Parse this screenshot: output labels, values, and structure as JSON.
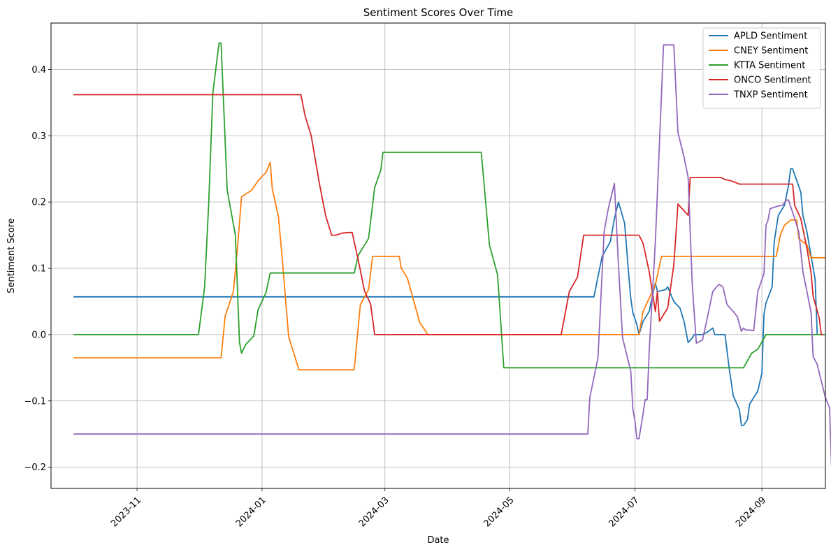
{
  "chart_data": {
    "type": "line",
    "title": "Sentiment Scores Over Time",
    "xlabel": "Date",
    "ylabel": "Sentiment Score",
    "xlim": [
      "2023-09-20",
      "2024-10-02"
    ],
    "ylim": [
      -0.232,
      0.47
    ],
    "x_ticks": [
      "2023-11",
      "2024-01",
      "2024-03",
      "2024-05",
      "2024-07",
      "2024-09"
    ],
    "y_ticks": [
      -0.2,
      -0.1,
      0.0,
      0.1,
      0.2,
      0.3,
      0.4
    ],
    "y_tick_labels": [
      "−0.2",
      "−0.1",
      "0.0",
      "0.1",
      "0.2",
      "0.3",
      "0.4"
    ],
    "grid": true,
    "legend_position": "top-right",
    "series": [
      {
        "name": "APLD Sentiment",
        "color": "#1f77b4",
        "points": [
          [
            "2023-10-01",
            0.057
          ],
          [
            "2024-06-11",
            0.057
          ],
          [
            "2024-06-15",
            0.118
          ],
          [
            "2024-06-19",
            0.14
          ],
          [
            "2024-06-21",
            0.175
          ],
          [
            "2024-06-23",
            0.2
          ],
          [
            "2024-06-26",
            0.168
          ],
          [
            "2024-06-28",
            0.09
          ],
          [
            "2024-06-29",
            0.055
          ],
          [
            "2024-06-30",
            0.033
          ],
          [
            "2024-07-02",
            0.015
          ],
          [
            "2024-07-03",
            0.0
          ],
          [
            "2024-07-05",
            0.02
          ],
          [
            "2024-07-08",
            0.035
          ],
          [
            "2024-07-10",
            0.065
          ],
          [
            "2024-07-11",
            0.078
          ],
          [
            "2024-07-12",
            0.065
          ],
          [
            "2024-07-16",
            0.068
          ],
          [
            "2024-07-17",
            0.072
          ],
          [
            "2024-07-20",
            0.05
          ],
          [
            "2024-07-23",
            0.04
          ],
          [
            "2024-07-25",
            0.02
          ],
          [
            "2024-07-27",
            -0.012
          ],
          [
            "2024-07-29",
            -0.005
          ],
          [
            "2024-07-30",
            0.0
          ],
          [
            "2024-08-03",
            0.0
          ],
          [
            "2024-08-06",
            0.005
          ],
          [
            "2024-08-08",
            0.01
          ],
          [
            "2024-08-09",
            0.0
          ],
          [
            "2024-08-14",
            0.0
          ],
          [
            "2024-08-16",
            -0.05
          ],
          [
            "2024-08-18",
            -0.092
          ],
          [
            "2024-08-21",
            -0.113
          ],
          [
            "2024-08-22",
            -0.137
          ],
          [
            "2024-08-23",
            -0.137
          ],
          [
            "2024-08-25",
            -0.128
          ],
          [
            "2024-08-26",
            -0.105
          ],
          [
            "2024-08-30",
            -0.085
          ],
          [
            "2024-09-01",
            -0.058
          ],
          [
            "2024-09-02",
            0.03
          ],
          [
            "2024-09-03",
            0.048
          ],
          [
            "2024-09-06",
            0.072
          ],
          [
            "2024-09-07",
            0.14
          ],
          [
            "2024-09-09",
            0.18
          ],
          [
            "2024-09-12",
            0.195
          ],
          [
            "2024-09-14",
            0.225
          ],
          [
            "2024-09-15",
            0.25
          ],
          [
            "2024-09-16",
            0.25
          ],
          [
            "2024-09-20",
            0.215
          ],
          [
            "2024-09-21",
            0.18
          ],
          [
            "2024-09-23",
            0.155
          ],
          [
            "2024-09-27",
            0.083
          ],
          [
            "2024-09-28",
            0.0
          ]
        ]
      },
      {
        "name": "CNEY Sentiment",
        "color": "#ff7f0e",
        "points": [
          [
            "2023-10-01",
            -0.035
          ],
          [
            "2023-12-12",
            -0.035
          ],
          [
            "2023-12-14",
            0.028
          ],
          [
            "2023-12-18",
            0.065
          ],
          [
            "2023-12-20",
            0.13
          ],
          [
            "2023-12-22",
            0.208
          ],
          [
            "2023-12-27",
            0.218
          ],
          [
            "2023-12-30",
            0.232
          ],
          [
            "2024-01-03",
            0.245
          ],
          [
            "2024-01-05",
            0.26
          ],
          [
            "2024-01-06",
            0.22
          ],
          [
            "2024-01-09",
            0.178
          ],
          [
            "2024-01-11",
            0.11
          ],
          [
            "2024-01-14",
            -0.003
          ],
          [
            "2024-01-19",
            -0.053
          ],
          [
            "2024-02-15",
            -0.053
          ],
          [
            "2024-02-18",
            0.045
          ],
          [
            "2024-02-22",
            0.068
          ],
          [
            "2024-02-24",
            0.118
          ],
          [
            "2024-03-08",
            0.118
          ],
          [
            "2024-03-09",
            0.1
          ],
          [
            "2024-03-12",
            0.085
          ],
          [
            "2024-03-18",
            0.018
          ],
          [
            "2024-03-22",
            0.0
          ],
          [
            "2024-07-03",
            0.0
          ],
          [
            "2024-07-05",
            0.035
          ],
          [
            "2024-07-08",
            0.055
          ],
          [
            "2024-07-11",
            0.075
          ],
          [
            "2024-07-14",
            0.118
          ],
          [
            "2024-09-08",
            0.118
          ],
          [
            "2024-09-10",
            0.15
          ],
          [
            "2024-09-12",
            0.165
          ],
          [
            "2024-09-15",
            0.173
          ],
          [
            "2024-09-18",
            0.173
          ],
          [
            "2024-09-19",
            0.145
          ],
          [
            "2024-09-23",
            0.135
          ],
          [
            "2024-09-25",
            0.116
          ],
          [
            "2024-10-02",
            0.116
          ]
        ]
      },
      {
        "name": "KTTA Sentiment",
        "color": "#2ca02c",
        "points": [
          [
            "2023-10-01",
            0.0
          ],
          [
            "2023-12-01",
            0.0
          ],
          [
            "2023-12-04",
            0.072
          ],
          [
            "2023-12-06",
            0.2
          ],
          [
            "2023-12-08",
            0.365
          ],
          [
            "2023-12-11",
            0.44
          ],
          [
            "2023-12-12",
            0.44
          ],
          [
            "2023-12-15",
            0.218
          ],
          [
            "2023-12-19",
            0.15
          ],
          [
            "2023-12-21",
            -0.012
          ],
          [
            "2023-12-22",
            -0.028
          ],
          [
            "2023-12-24",
            -0.015
          ],
          [
            "2023-12-28",
            -0.002
          ],
          [
            "2023-12-30",
            0.037
          ],
          [
            "2024-01-03",
            0.064
          ],
          [
            "2024-01-05",
            0.093
          ],
          [
            "2024-02-15",
            0.093
          ],
          [
            "2024-02-17",
            0.12
          ],
          [
            "2024-02-22",
            0.145
          ],
          [
            "2024-02-25",
            0.222
          ],
          [
            "2024-02-28",
            0.248
          ],
          [
            "2024-02-29",
            0.275
          ],
          [
            "2024-04-17",
            0.275
          ],
          [
            "2024-04-21",
            0.135
          ],
          [
            "2024-04-25",
            0.09
          ],
          [
            "2024-04-28",
            -0.05
          ],
          [
            "2024-08-23",
            -0.05
          ],
          [
            "2024-08-27",
            -0.028
          ],
          [
            "2024-08-30",
            -0.022
          ],
          [
            "2024-09-03",
            0.0
          ],
          [
            "2024-10-02",
            0.0
          ]
        ]
      },
      {
        "name": "ONCO Sentiment",
        "color": "#d62728",
        "points": [
          [
            "2023-10-01",
            0.362
          ],
          [
            "2024-01-20",
            0.362
          ],
          [
            "2024-01-22",
            0.33
          ],
          [
            "2024-01-25",
            0.3
          ],
          [
            "2024-01-29",
            0.228
          ],
          [
            "2024-02-01",
            0.18
          ],
          [
            "2024-02-04",
            0.15
          ],
          [
            "2024-02-06",
            0.15
          ],
          [
            "2024-02-09",
            0.153
          ],
          [
            "2024-02-12",
            0.154
          ],
          [
            "2024-02-14",
            0.154
          ],
          [
            "2024-02-17",
            0.112
          ],
          [
            "2024-02-20",
            0.066
          ],
          [
            "2024-02-23",
            0.046
          ],
          [
            "2024-02-25",
            0.0
          ],
          [
            "2024-05-26",
            0.0
          ],
          [
            "2024-05-30",
            0.065
          ],
          [
            "2024-06-03",
            0.087
          ],
          [
            "2024-06-06",
            0.15
          ],
          [
            "2024-07-03",
            0.15
          ],
          [
            "2024-07-05",
            0.138
          ],
          [
            "2024-07-08",
            0.095
          ],
          [
            "2024-07-11",
            0.035
          ],
          [
            "2024-07-12",
            0.065
          ],
          [
            "2024-07-13",
            0.02
          ],
          [
            "2024-07-17",
            0.04
          ],
          [
            "2024-07-20",
            0.105
          ],
          [
            "2024-07-22",
            0.197
          ],
          [
            "2024-07-27",
            0.18
          ],
          [
            "2024-07-28",
            0.237
          ],
          [
            "2024-08-12",
            0.237
          ],
          [
            "2024-08-14",
            0.234
          ],
          [
            "2024-08-17",
            0.232
          ],
          [
            "2024-08-21",
            0.227
          ],
          [
            "2024-09-16",
            0.227
          ],
          [
            "2024-09-17",
            0.195
          ],
          [
            "2024-09-20",
            0.175
          ],
          [
            "2024-09-23",
            0.13
          ],
          [
            "2024-09-25",
            0.093
          ],
          [
            "2024-09-26",
            0.058
          ],
          [
            "2024-09-29",
            0.025
          ],
          [
            "2024-09-30",
            0.0
          ],
          [
            "2024-10-01",
            0.0
          ]
        ]
      },
      {
        "name": "TNXP Sentiment",
        "color": "#9467bd",
        "points": [
          [
            "2023-10-01",
            -0.15
          ],
          [
            "2024-06-08",
            -0.15
          ],
          [
            "2024-06-09",
            -0.095
          ],
          [
            "2024-06-13",
            -0.035
          ],
          [
            "2024-06-16",
            0.155
          ],
          [
            "2024-06-18",
            0.19
          ],
          [
            "2024-06-21",
            0.228
          ],
          [
            "2024-06-23",
            0.105
          ],
          [
            "2024-06-25",
            -0.005
          ],
          [
            "2024-06-29",
            -0.055
          ],
          [
            "2024-06-30",
            -0.112
          ],
          [
            "2024-07-01",
            -0.13
          ],
          [
            "2024-07-02",
            -0.157
          ],
          [
            "2024-07-03",
            -0.157
          ],
          [
            "2024-07-05",
            -0.12
          ],
          [
            "2024-07-06",
            -0.098
          ],
          [
            "2024-07-07",
            -0.098
          ],
          [
            "2024-07-08",
            -0.025
          ],
          [
            "2024-07-11",
            0.14
          ],
          [
            "2024-07-13",
            0.29
          ],
          [
            "2024-07-15",
            0.437
          ],
          [
            "2024-07-20",
            0.437
          ],
          [
            "2024-07-22",
            0.305
          ],
          [
            "2024-07-25",
            0.268
          ],
          [
            "2024-07-27",
            0.237
          ],
          [
            "2024-07-29",
            0.075
          ],
          [
            "2024-07-31",
            -0.013
          ],
          [
            "2024-08-03",
            -0.008
          ],
          [
            "2024-08-05",
            0.02
          ],
          [
            "2024-08-08",
            0.065
          ],
          [
            "2024-08-11",
            0.076
          ],
          [
            "2024-08-13",
            0.072
          ],
          [
            "2024-08-15",
            0.045
          ],
          [
            "2024-08-18",
            0.035
          ],
          [
            "2024-08-20",
            0.027
          ],
          [
            "2024-08-22",
            0.005
          ],
          [
            "2024-08-23",
            0.01
          ],
          [
            "2024-08-24",
            0.007
          ],
          [
            "2024-08-26",
            0.007
          ],
          [
            "2024-08-28",
            0.006
          ],
          [
            "2024-08-30",
            0.065
          ],
          [
            "2024-09-02",
            0.092
          ],
          [
            "2024-09-03",
            0.165
          ],
          [
            "2024-09-04",
            0.173
          ],
          [
            "2024-09-05",
            0.19
          ],
          [
            "2024-09-09",
            0.194
          ],
          [
            "2024-09-11",
            0.195
          ],
          [
            "2024-09-13",
            0.203
          ],
          [
            "2024-09-14",
            0.203
          ],
          [
            "2024-09-17",
            0.175
          ],
          [
            "2024-09-19",
            0.155
          ],
          [
            "2024-09-21",
            0.095
          ],
          [
            "2024-09-23",
            0.065
          ],
          [
            "2024-09-25",
            0.033
          ],
          [
            "2024-09-26",
            -0.033
          ],
          [
            "2024-09-28",
            -0.045
          ],
          [
            "2024-09-30",
            -0.07
          ],
          [
            "2024-10-02",
            -0.095
          ],
          [
            "2024-10-04",
            -0.11
          ],
          [
            "2024-10-05",
            -0.2
          ],
          [
            "2024-10-06",
            -0.2
          ]
        ]
      }
    ]
  }
}
